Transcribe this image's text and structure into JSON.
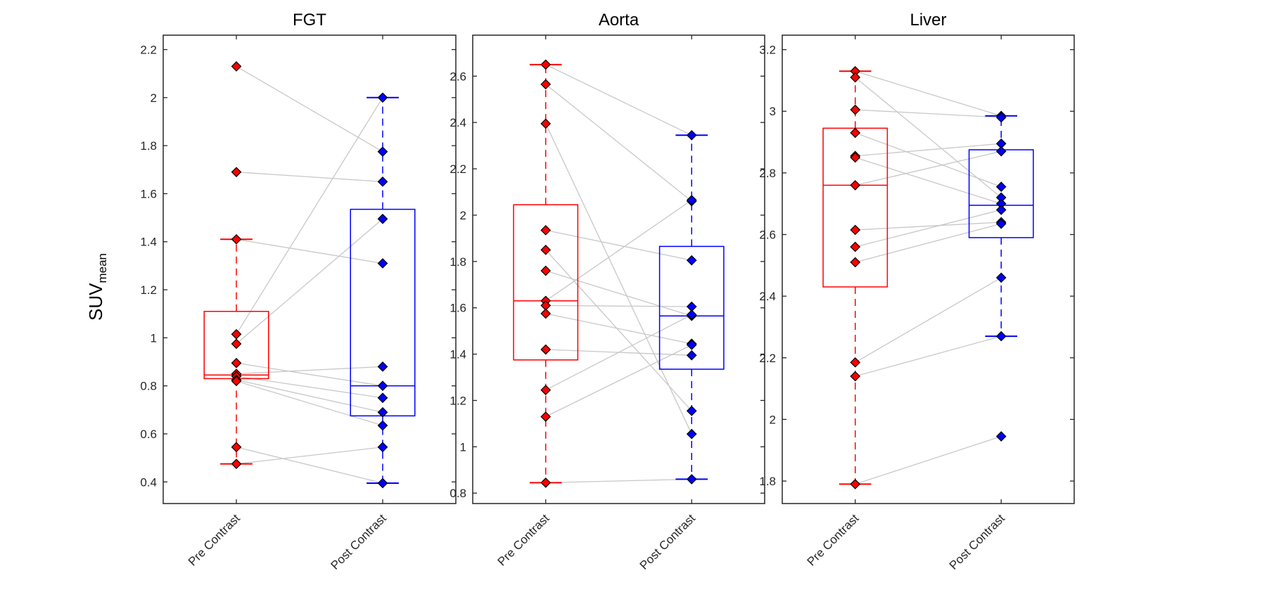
{
  "chart_data": [
    {
      "type": "box",
      "title": "FGT",
      "categories": [
        "Pre Contrast",
        "Post Contrast"
      ],
      "ylim": [
        0.31,
        2.26
      ],
      "yticks": [
        0.4,
        0.6,
        0.8,
        1,
        1.2,
        1.4,
        1.6,
        1.8,
        2,
        2.2
      ],
      "pairs": {
        "pre": [
          2.13,
          1.69,
          1.41,
          1.015,
          0.975,
          0.895,
          0.85,
          0.84,
          0.825,
          0.82,
          0.545,
          0.475
        ],
        "post": [
          1.775,
          1.65,
          1.31,
          2.0,
          1.495,
          0.8,
          0.88,
          0.75,
          0.69,
          0.635,
          0.395,
          0.545
        ]
      },
      "boxes": [
        {
          "q1": 0.83,
          "median": 0.845,
          "q3": 1.11,
          "whisker_low": 0.475,
          "whisker_high": 1.41
        },
        {
          "q1": 0.675,
          "median": 0.8,
          "q3": 1.535,
          "whisker_low": 0.395,
          "whisker_high": 2.0
        }
      ]
    },
    {
      "type": "box",
      "title": "Aorta",
      "categories": [
        "Pre Contrast",
        "Post Contrast"
      ],
      "ylim": [
        0.755,
        2.777
      ],
      "yticks": [
        0.8,
        1,
        1.2,
        1.4,
        1.6,
        1.8,
        2,
        2.2,
        2.4,
        2.6
      ],
      "pairs": {
        "pre": [
          2.65,
          2.565,
          2.395,
          1.935,
          1.85,
          1.76,
          1.63,
          1.61,
          1.575,
          1.42,
          1.245,
          1.13,
          0.845
        ],
        "post": [
          2.345,
          2.06,
          1.055,
          1.805,
          1.155,
          1.565,
          2.065,
          1.605,
          1.445,
          1.395,
          1.57,
          1.44,
          0.86
        ]
      },
      "boxes": [
        {
          "q1": 1.375,
          "median": 1.63,
          "q3": 2.045,
          "whisker_low": 0.845,
          "whisker_high": 2.65
        },
        {
          "q1": 1.335,
          "median": 1.565,
          "q3": 1.865,
          "whisker_low": 0.86,
          "whisker_high": 2.345
        }
      ]
    },
    {
      "type": "box",
      "title": "Liver",
      "categories": [
        "Pre Contrast",
        "Post Contrast"
      ],
      "ylim": [
        1.727,
        3.247
      ],
      "yticks": [
        1.8,
        2,
        2.2,
        2.4,
        2.6,
        2.8,
        3,
        3.2
      ],
      "pairs": {
        "pre": [
          3.13,
          3.11,
          3.005,
          2.93,
          2.855,
          2.85,
          2.76,
          2.615,
          2.56,
          2.51,
          2.185,
          2.14,
          1.79
        ],
        "post": [
          2.985,
          2.72,
          2.98,
          2.755,
          2.895,
          2.7,
          2.87,
          2.64,
          2.68,
          2.635,
          2.46,
          2.27,
          1.945
        ]
      },
      "boxes": [
        {
          "q1": 2.43,
          "median": 2.76,
          "q3": 2.945,
          "whisker_low": 1.79,
          "whisker_high": 3.13
        },
        {
          "q1": 2.59,
          "median": 2.695,
          "q3": 2.875,
          "whisker_low": 2.27,
          "whisker_high": 2.985
        }
      ]
    }
  ],
  "ylabel": "SUV",
  "ylabel_sub": "mean",
  "colors": {
    "pre": "#ff0000",
    "post": "#0000ff",
    "lines": "#c8c8c8",
    "axis": "#262626"
  }
}
